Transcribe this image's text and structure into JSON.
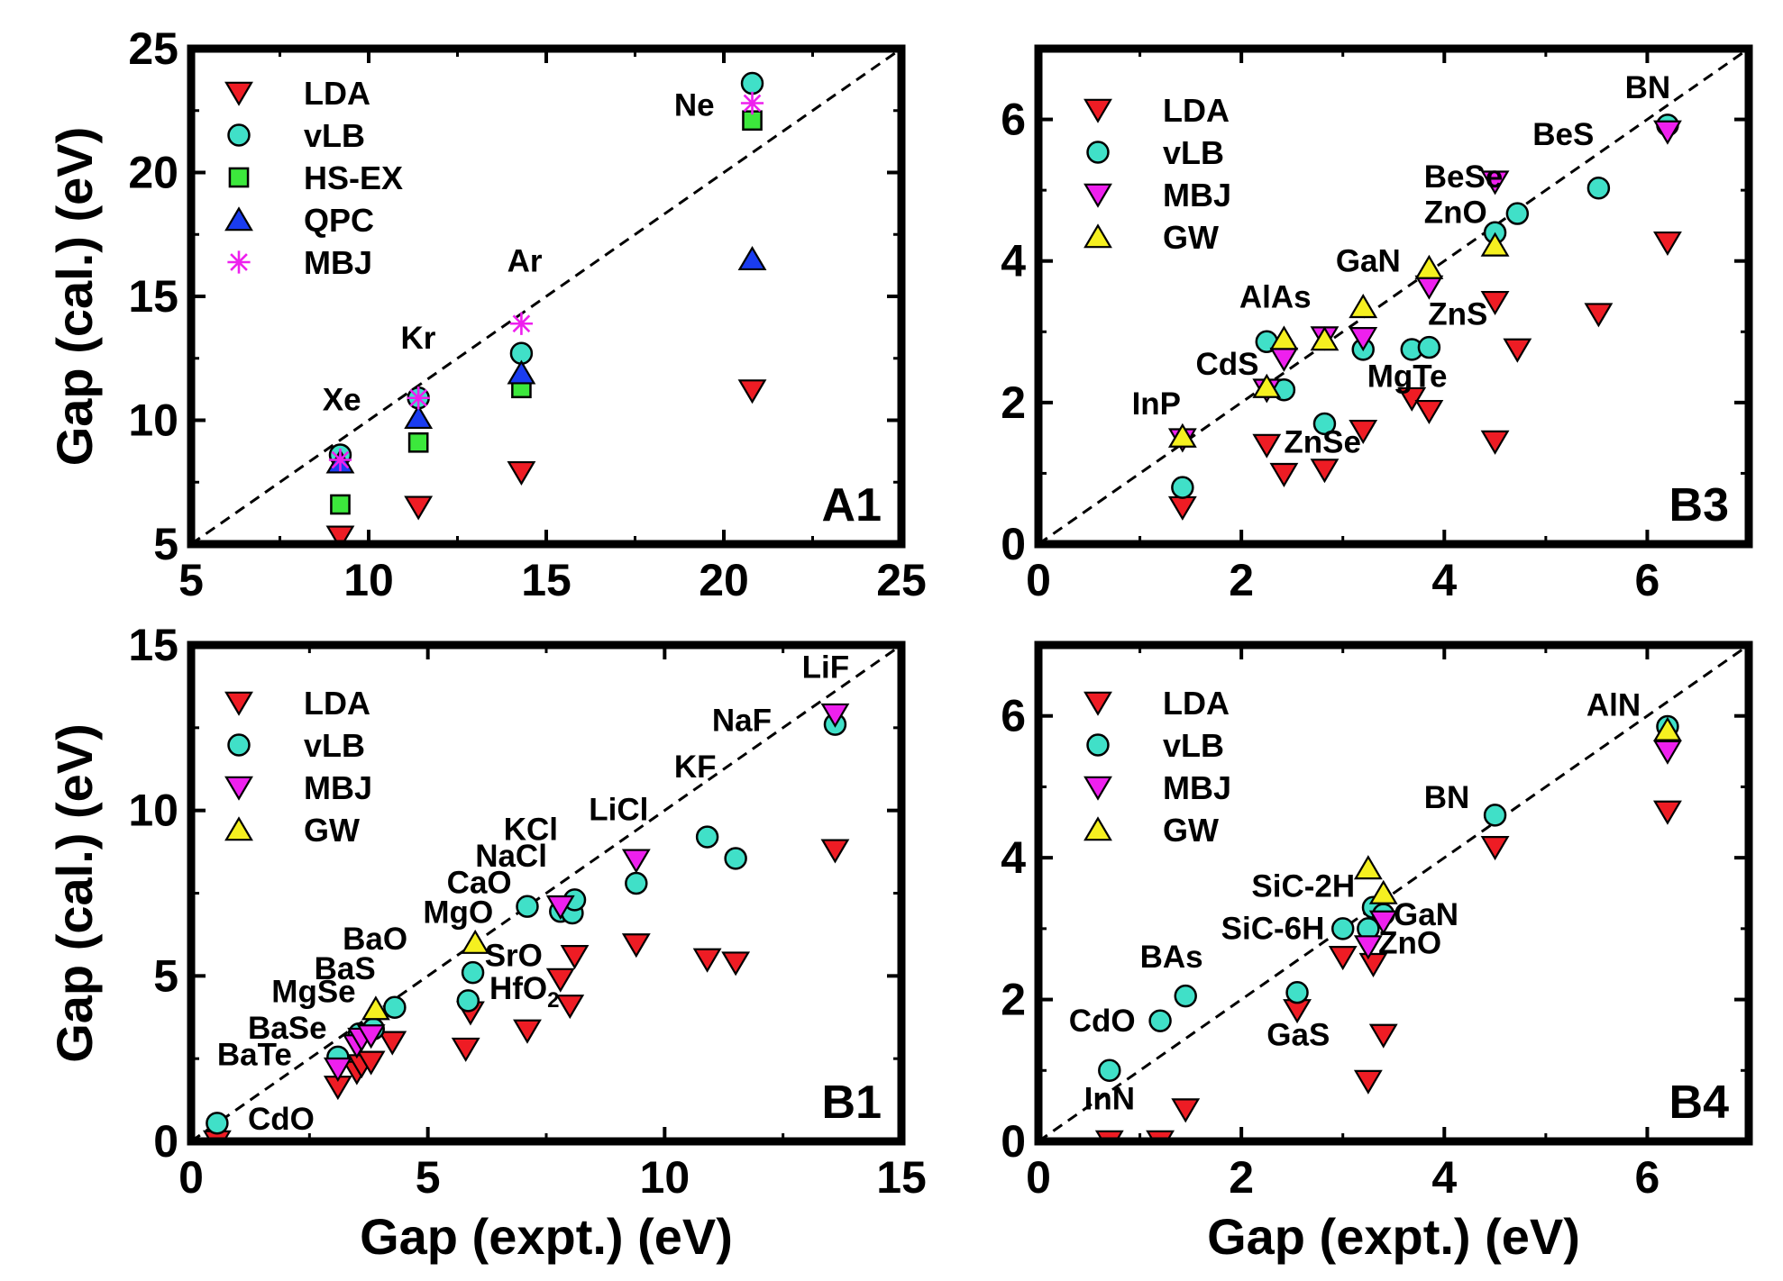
{
  "styles": {
    "LDA": {
      "marker": "triangle-down",
      "fill": "#ee1c24",
      "stroke": "#000000"
    },
    "vLB": {
      "marker": "circle",
      "fill": "#40e0c8",
      "stroke": "#000000"
    },
    "HS-EX": {
      "marker": "square",
      "fill": "#3ce83c",
      "stroke": "#000000"
    },
    "QPC": {
      "marker": "triangle-up",
      "fill": "#1a3cf0",
      "stroke": "#000000"
    },
    "MBJ": {
      "marker": "triangle-down",
      "fill": "#ee20ee",
      "stroke": "#000000"
    },
    "MBJ-star": {
      "marker": "star",
      "fill": "none",
      "stroke": "#ee20ee"
    },
    "GW": {
      "marker": "triangle-up",
      "fill": "#f5f020",
      "stroke": "#000000"
    }
  },
  "chart_data": [
    {
      "id": "A1",
      "type": "scatter",
      "panel_label": "A1",
      "xlim": [
        5,
        25
      ],
      "ylim": [
        5,
        25
      ],
      "xticks": [
        5,
        10,
        15,
        20,
        25
      ],
      "yticks": [
        5,
        10,
        15,
        20,
        25
      ],
      "xlabel": "",
      "ylabel": "Gap (cal.) (eV)",
      "legend": [
        {
          "label": "LDA",
          "style": "LDA"
        },
        {
          "label": "vLB",
          "style": "vLB"
        },
        {
          "label": "HS-EX",
          "style": "HS-EX"
        },
        {
          "label": "QPC",
          "style": "QPC"
        },
        {
          "label": "MBJ",
          "style": "MBJ-star"
        }
      ],
      "series": [
        {
          "name": "LDA",
          "style": "LDA",
          "points": [
            [
              9.2,
              5.3
            ],
            [
              11.4,
              6.5
            ],
            [
              14.3,
              7.9
            ],
            [
              20.8,
              11.2
            ]
          ]
        },
        {
          "name": "vLB",
          "style": "vLB",
          "points": [
            [
              9.2,
              8.6
            ],
            [
              11.4,
              10.9
            ],
            [
              14.3,
              12.7
            ],
            [
              20.8,
              23.6
            ]
          ]
        },
        {
          "name": "HS-EX",
          "style": "HS-EX",
          "points": [
            [
              9.2,
              6.6
            ],
            [
              11.4,
              9.1
            ],
            [
              14.3,
              11.3
            ],
            [
              20.8,
              22.1
            ]
          ]
        },
        {
          "name": "QPC",
          "style": "QPC",
          "points": [
            [
              9.2,
              8.3
            ],
            [
              11.4,
              10.1
            ],
            [
              14.3,
              11.9
            ],
            [
              20.8,
              16.5
            ]
          ]
        },
        {
          "name": "MBJ",
          "style": "MBJ-star",
          "points": [
            [
              9.2,
              8.4
            ],
            [
              11.4,
              10.9
            ],
            [
              14.3,
              13.9
            ],
            [
              20.8,
              22.8
            ]
          ]
        }
      ],
      "annotations": [
        {
          "text": "Xe",
          "x": 8.7,
          "y": 10.4
        },
        {
          "text": "Kr",
          "x": 10.9,
          "y": 12.9
        },
        {
          "text": "Ar",
          "x": 13.9,
          "y": 16.0
        },
        {
          "text": "Ne",
          "x": 18.6,
          "y": 22.3
        }
      ]
    },
    {
      "id": "B3",
      "type": "scatter",
      "panel_label": "B3",
      "xlim": [
        0,
        7
      ],
      "ylim": [
        0,
        7
      ],
      "xticks": [
        0,
        2,
        4,
        6
      ],
      "yticks": [
        0,
        2,
        4,
        6
      ],
      "xlabel": "",
      "ylabel": "",
      "legend": [
        {
          "label": "LDA",
          "style": "LDA"
        },
        {
          "label": "vLB",
          "style": "vLB"
        },
        {
          "label": "MBJ",
          "style": "MBJ"
        },
        {
          "label": "GW",
          "style": "GW"
        }
      ],
      "series": [
        {
          "name": "LDA",
          "style": "LDA",
          "points": [
            [
              1.42,
              0.52
            ],
            [
              2.25,
              1.4
            ],
            [
              2.42,
              0.99
            ],
            [
              2.82,
              1.05
            ],
            [
              3.2,
              1.6
            ],
            [
              3.68,
              2.06
            ],
            [
              3.85,
              1.88
            ],
            [
              4.5,
              1.45
            ],
            [
              4.5,
              3.42
            ],
            [
              4.72,
              2.75
            ],
            [
              5.52,
              3.25
            ],
            [
              6.2,
              4.26
            ]
          ]
        },
        {
          "name": "vLB",
          "style": "vLB",
          "points": [
            [
              1.42,
              0.8
            ],
            [
              2.25,
              2.86
            ],
            [
              2.42,
              2.18
            ],
            [
              2.82,
              1.7
            ],
            [
              3.2,
              2.75
            ],
            [
              3.68,
              2.75
            ],
            [
              3.85,
              2.78
            ],
            [
              4.5,
              4.4
            ],
            [
              4.72,
              4.67
            ],
            [
              5.52,
              5.03
            ],
            [
              6.2,
              5.92
            ]
          ]
        },
        {
          "name": "MBJ",
          "style": "MBJ",
          "points": [
            [
              1.42,
              1.48
            ],
            [
              2.25,
              2.18
            ],
            [
              2.42,
              2.62
            ],
            [
              2.82,
              2.92
            ],
            [
              3.2,
              2.91
            ],
            [
              3.85,
              3.64
            ],
            [
              4.5,
              5.12
            ],
            [
              6.2,
              5.83
            ]
          ]
        },
        {
          "name": "GW",
          "style": "GW",
          "points": [
            [
              1.42,
              1.52
            ],
            [
              2.25,
              2.22
            ],
            [
              2.42,
              2.9
            ],
            [
              2.82,
              2.89
            ],
            [
              3.2,
              3.35
            ],
            [
              3.85,
              3.9
            ],
            [
              4.5,
              4.22
            ]
          ]
        }
      ],
      "annotations": [
        {
          "text": "BN",
          "x": 5.78,
          "y": 6.3
        },
        {
          "text": "BeS",
          "x": 4.87,
          "y": 5.64
        },
        {
          "text": "BeSe",
          "x": 3.8,
          "y": 5.04
        },
        {
          "text": "ZnO",
          "x": 3.8,
          "y": 4.54
        },
        {
          "text": "GaN",
          "x": 2.93,
          "y": 3.85
        },
        {
          "text": "AlAs",
          "x": 1.98,
          "y": 3.34
        },
        {
          "text": "ZnS",
          "x": 3.84,
          "y": 3.1
        },
        {
          "text": "CdS",
          "x": 1.55,
          "y": 2.39
        },
        {
          "text": "MgTe",
          "x": 3.24,
          "y": 2.22
        },
        {
          "text": "InP",
          "x": 0.92,
          "y": 1.83
        },
        {
          "text": "ZnSe",
          "x": 2.42,
          "y": 1.29
        }
      ]
    },
    {
      "id": "B1",
      "type": "scatter",
      "panel_label": "B1",
      "xlim": [
        0,
        15
      ],
      "ylim": [
        0,
        15
      ],
      "xticks": [
        0,
        5,
        10,
        15
      ],
      "yticks": [
        0,
        5,
        10,
        15
      ],
      "xlabel": "Gap (expt.) (eV)",
      "ylabel": "Gap (cal.) (eV)",
      "legend": [
        {
          "label": "LDA",
          "style": "LDA"
        },
        {
          "label": "vLB",
          "style": "vLB"
        },
        {
          "label": "MBJ",
          "style": "MBJ"
        },
        {
          "label": "GW",
          "style": "GW"
        }
      ],
      "series": [
        {
          "name": "LDA",
          "style": "LDA",
          "points": [
            [
              0.55,
              0.0
            ],
            [
              3.1,
              1.65
            ],
            [
              3.5,
              2.1
            ],
            [
              3.6,
              2.3
            ],
            [
              3.8,
              2.4
            ],
            [
              4.25,
              3.0
            ],
            [
              5.8,
              2.8
            ],
            [
              5.9,
              3.9
            ],
            [
              7.1,
              3.35
            ],
            [
              7.8,
              4.9
            ],
            [
              8.0,
              4.1
            ],
            [
              8.1,
              5.6
            ],
            [
              9.4,
              5.95
            ],
            [
              10.9,
              5.5
            ],
            [
              11.5,
              5.4
            ],
            [
              13.6,
              8.8
            ]
          ]
        },
        {
          "name": "vLB",
          "style": "vLB",
          "points": [
            [
              0.55,
              0.55
            ],
            [
              3.1,
              2.55
            ],
            [
              3.55,
              3.25
            ],
            [
              3.85,
              3.4
            ],
            [
              4.3,
              4.05
            ],
            [
              5.85,
              4.25
            ],
            [
              5.95,
              5.1
            ],
            [
              7.1,
              7.1
            ],
            [
              7.8,
              6.95
            ],
            [
              8.05,
              6.9
            ],
            [
              8.1,
              7.3
            ],
            [
              9.4,
              7.8
            ],
            [
              10.9,
              9.2
            ],
            [
              11.5,
              8.55
            ],
            [
              13.6,
              12.6
            ]
          ]
        },
        {
          "name": "MBJ",
          "style": "MBJ",
          "points": [
            [
              3.1,
              2.2
            ],
            [
              3.5,
              2.9
            ],
            [
              3.6,
              3.1
            ],
            [
              3.8,
              3.2
            ],
            [
              7.8,
              7.1
            ],
            [
              9.4,
              8.5
            ],
            [
              13.6,
              12.9
            ]
          ]
        },
        {
          "name": "GW",
          "style": "GW",
          "points": [
            [
              3.9,
              4.0
            ],
            [
              6.0,
              6.0
            ]
          ]
        }
      ],
      "annotations": [
        {
          "text": "LiF",
          "x": 12.9,
          "y": 14.0
        },
        {
          "text": "NaF",
          "x": 11.0,
          "y": 12.4
        },
        {
          "text": "KF",
          "x": 10.2,
          "y": 11.0
        },
        {
          "text": "LiCl",
          "x": 8.4,
          "y": 9.7
        },
        {
          "text": "KCl",
          "x": 6.6,
          "y": 9.1
        },
        {
          "text": "NaCl",
          "x": 6.0,
          "y": 8.3
        },
        {
          "text": "CaO",
          "x": 5.4,
          "y": 7.5
        },
        {
          "text": "MgO",
          "x": 4.9,
          "y": 6.6
        },
        {
          "text": "BaO",
          "x": 3.2,
          "y": 5.8
        },
        {
          "text": "BaS",
          "x": 2.6,
          "y": 4.9
        },
        {
          "text": "MgSe",
          "x": 1.7,
          "y": 4.2
        },
        {
          "text": "BaSe",
          "x": 1.2,
          "y": 3.1
        },
        {
          "text": "BaTe",
          "x": 0.55,
          "y": 2.3
        },
        {
          "text": "SrO",
          "x": 6.2,
          "y": 5.3
        },
        {
          "text": "HfO2",
          "x": 6.3,
          "y": 4.3
        },
        {
          "text": "CdO",
          "x": 1.2,
          "y": 0.35
        }
      ]
    },
    {
      "id": "B4",
      "type": "scatter",
      "panel_label": "B4",
      "xlim": [
        0,
        7
      ],
      "ylim": [
        0,
        7
      ],
      "xticks": [
        0,
        2,
        4,
        6
      ],
      "yticks": [
        0,
        2,
        4,
        6
      ],
      "xlabel": "Gap (expt.) (eV)",
      "ylabel": "",
      "legend": [
        {
          "label": "LDA",
          "style": "LDA"
        },
        {
          "label": "vLB",
          "style": "vLB"
        },
        {
          "label": "MBJ",
          "style": "MBJ"
        },
        {
          "label": "GW",
          "style": "GW"
        }
      ],
      "series": [
        {
          "name": "LDA",
          "style": "LDA",
          "points": [
            [
              0.7,
              0.0
            ],
            [
              1.2,
              0.0
            ],
            [
              1.45,
              0.45
            ],
            [
              2.55,
              1.85
            ],
            [
              3.0,
              2.6
            ],
            [
              3.25,
              0.85
            ],
            [
              3.3,
              2.5
            ],
            [
              3.4,
              1.5
            ],
            [
              4.5,
              4.15
            ],
            [
              6.2,
              4.65
            ]
          ]
        },
        {
          "name": "vLB",
          "style": "vLB",
          "points": [
            [
              0.7,
              1.0
            ],
            [
              1.2,
              1.7
            ],
            [
              1.45,
              2.05
            ],
            [
              2.55,
              2.1
            ],
            [
              3.0,
              3.0
            ],
            [
              3.25,
              3.0
            ],
            [
              3.3,
              3.3
            ],
            [
              3.4,
              3.2
            ],
            [
              4.5,
              4.6
            ],
            [
              6.2,
              5.85
            ]
          ]
        },
        {
          "name": "MBJ",
          "style": "MBJ",
          "points": [
            [
              3.25,
              2.75
            ],
            [
              3.4,
              3.1
            ],
            [
              6.2,
              5.5
            ]
          ]
        },
        {
          "name": "GW",
          "style": "GW",
          "points": [
            [
              3.25,
              3.85
            ],
            [
              3.4,
              3.5
            ],
            [
              6.2,
              5.8
            ]
          ]
        }
      ],
      "annotations": [
        {
          "text": "AlN",
          "x": 5.4,
          "y": 6.0
        },
        {
          "text": "BN",
          "x": 3.8,
          "y": 4.7
        },
        {
          "text": "SiC-2H",
          "x": 2.1,
          "y": 3.45
        },
        {
          "text": "SiC-6H",
          "x": 1.8,
          "y": 2.85
        },
        {
          "text": "GaN",
          "x": 3.5,
          "y": 3.05
        },
        {
          "text": "ZnO",
          "x": 3.35,
          "y": 2.65
        },
        {
          "text": "BAs",
          "x": 1.0,
          "y": 2.45
        },
        {
          "text": "CdO",
          "x": 0.3,
          "y": 1.55
        },
        {
          "text": "GaS",
          "x": 2.25,
          "y": 1.35
        },
        {
          "text": "InN",
          "x": 0.45,
          "y": 0.45
        }
      ]
    }
  ]
}
